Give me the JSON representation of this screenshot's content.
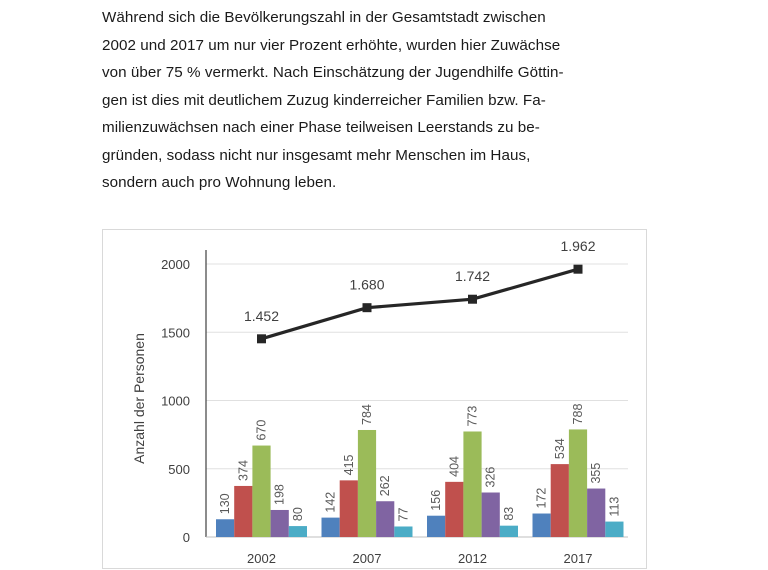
{
  "document": {
    "paragraph": [
      "Während sich die Bevölkerungszahl in der Gesamtstadt zwischen",
      "2002 und 2017 um nur vier Prozent erhöhte, wurden hier Zuwächse",
      "von über 75 % vermerkt. Nach Einschätzung der Jugendhilfe Göttin-",
      "gen ist dies mit deutlichem Zuzug kinderreicher Familien bzw. Fa-",
      "milienzuwächsen nach einer Phase teilweisen Leerstands zu be-",
      "gründen, sodass nicht nur insgesamt mehr Menschen im Haus,",
      "sondern auch pro Wohnung leben."
    ]
  },
  "chart_data": {
    "type": "bar",
    "categories": [
      "2002",
      "2007",
      "2012",
      "2017"
    ],
    "ylabel": "Anzahl der Personen",
    "xlabel": "",
    "title": "",
    "ylim": [
      0,
      2000
    ],
    "yticks": [
      "0",
      "500",
      "1000",
      "1500",
      "2000"
    ],
    "grid": true,
    "series": [
      {
        "values": [
          130,
          142,
          156,
          172
        ],
        "labels": [
          "130",
          "142",
          "156",
          "172"
        ],
        "color": "#4f81bd"
      },
      {
        "values": [
          374,
          415,
          404,
          534
        ],
        "labels": [
          "374",
          "415",
          "404",
          "534"
        ],
        "color": "#c0504d"
      },
      {
        "values": [
          670,
          784,
          773,
          788
        ],
        "labels": [
          "670",
          "784",
          "773",
          "788"
        ],
        "color": "#9bbb59"
      },
      {
        "values": [
          198,
          262,
          326,
          355
        ],
        "labels": [
          "198",
          "262",
          "326",
          "355"
        ],
        "color": "#8064a2"
      },
      {
        "values": [
          80,
          77,
          83,
          113
        ],
        "labels": [
          "80",
          "77",
          "83",
          "113"
        ],
        "color": "#4bacc6"
      }
    ],
    "line": {
      "values": [
        1452,
        1680,
        1742,
        1962
      ],
      "labels": [
        "1.452",
        "1.680",
        "1.742",
        "1.962"
      ],
      "color": "#262626",
      "marker": "square"
    }
  }
}
